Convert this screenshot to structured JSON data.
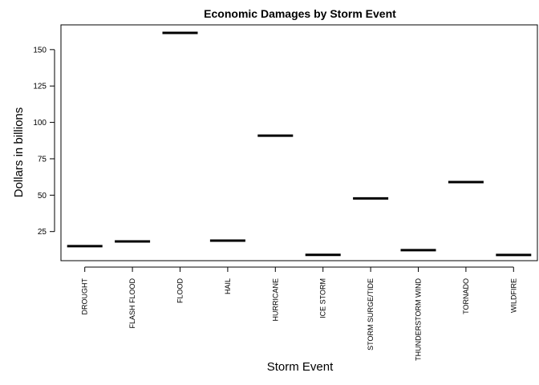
{
  "chart_data": {
    "type": "bar",
    "title": "Economic Damages by Storm Event",
    "xlabel": "Storm Event",
    "ylabel": "Dollars in billions",
    "categories": [
      "DROUGHT",
      "FLASH FLOOD",
      "FLOOD",
      "HAIL",
      "HURRICANE",
      "ICE STORM",
      "STORM SURGE/TIDE",
      "THUNDERSTORM WIND",
      "TORNADO",
      "WILDFIRE"
    ],
    "values": [
      15.0,
      18.2,
      161.5,
      18.8,
      90.9,
      9.0,
      47.8,
      12.2,
      59.0,
      8.9
    ],
    "yticks": [
      25,
      50,
      75,
      100,
      125,
      150
    ],
    "ylim": [
      5,
      167
    ],
    "grid": false,
    "legend": "none"
  }
}
